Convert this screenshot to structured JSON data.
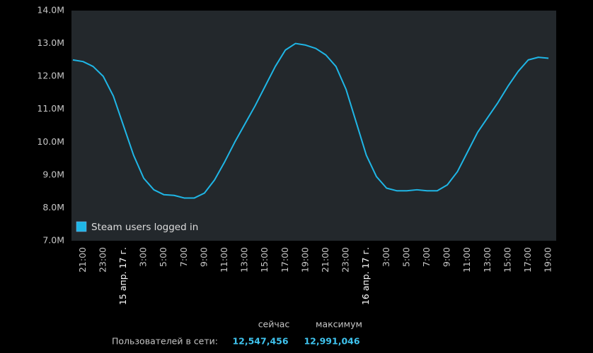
{
  "chart_data": {
    "type": "line",
    "categories": [
      null,
      "21:00",
      null,
      "23:00",
      null,
      "15 апр. 17 г.",
      null,
      "3:00",
      null,
      "5:00",
      null,
      "7:00",
      null,
      "9:00",
      null,
      "11:00",
      null,
      "13:00",
      null,
      "15:00",
      null,
      "17:00",
      null,
      "19:00",
      null,
      "21:00",
      null,
      "23:00",
      null,
      "16 апр. 17 г.",
      null,
      "3:00",
      null,
      "5:00",
      null,
      "7:00",
      null,
      "9:00",
      null,
      "11:00",
      null,
      "13:00",
      null,
      "15:00",
      null,
      "17:00",
      null,
      "19:00"
    ],
    "series": [
      {
        "name": "Steam users logged in",
        "color": "#1fb6e6",
        "values": [
          12500000,
          12450000,
          12300000,
          12000000,
          11400000,
          10500000,
          9600000,
          8900000,
          8550000,
          8400000,
          8380000,
          8300000,
          8300000,
          8450000,
          8850000,
          9400000,
          10000000,
          10550000,
          11100000,
          11700000,
          12300000,
          12800000,
          13000000,
          12950000,
          12850000,
          12650000,
          12300000,
          11600000,
          10600000,
          9600000,
          8950000,
          8600000,
          8520000,
          8520000,
          8550000,
          8520000,
          8520000,
          8700000,
          9100000,
          9700000,
          10300000,
          10750000,
          11200000,
          11700000,
          12150000,
          12500000,
          12580000,
          12550000
        ]
      }
    ],
    "ylim": [
      7000000,
      14000000
    ],
    "yticks": [
      {
        "value": 7000000,
        "label": "7.0M"
      },
      {
        "value": 8000000,
        "label": "8.0M"
      },
      {
        "value": 9000000,
        "label": "9.0M"
      },
      {
        "value": 10000000,
        "label": "10.0M"
      },
      {
        "value": 11000000,
        "label": "11.0M"
      },
      {
        "value": 12000000,
        "label": "12.0M"
      },
      {
        "value": 13000000,
        "label": "13.0M"
      },
      {
        "value": 14000000,
        "label": "14.0M"
      }
    ],
    "legend": "lower left",
    "grid": false
  },
  "stats": {
    "label": "Пользователей в сети:",
    "now_label": "сейчас",
    "max_label": "максимум",
    "now": "12,547,456",
    "max": "12,991,046"
  }
}
